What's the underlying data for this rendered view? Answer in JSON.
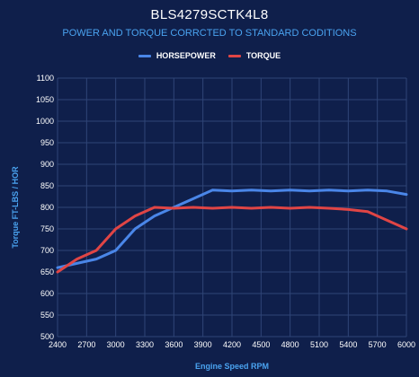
{
  "chart_data": {
    "type": "line",
    "title": "BLS4279SCTK4L8",
    "subtitle": "POWER AND TORQUE CORRCTED TO STANDARD CODITIONS",
    "xlabel": "Engine Speed RPM",
    "ylabel": "Torque FT-LBS / HOR",
    "xlim": [
      2400,
      6000
    ],
    "ylim": [
      500,
      1100
    ],
    "x_ticks": [
      2400,
      2700,
      3000,
      3300,
      3600,
      3900,
      4200,
      4500,
      4800,
      5100,
      5400,
      5700,
      6000
    ],
    "y_ticks": [
      500,
      550,
      600,
      650,
      700,
      750,
      800,
      850,
      900,
      950,
      1000,
      1050,
      1100
    ],
    "grid": true,
    "legend": "top-center",
    "x": [
      2400,
      2600,
      2800,
      3000,
      3200,
      3400,
      3600,
      3800,
      4000,
      4200,
      4400,
      4600,
      4800,
      5000,
      5200,
      5400,
      5600,
      5800,
      6000
    ],
    "series": [
      {
        "name": "HORSEPOWER",
        "color": "#4a86e8",
        "values": [
          660,
          670,
          680,
          700,
          750,
          780,
          800,
          820,
          840,
          838,
          840,
          838,
          840,
          838,
          840,
          838,
          840,
          838,
          830
        ]
      },
      {
        "name": "TORQUE",
        "color": "#e04545",
        "values": [
          650,
          680,
          700,
          750,
          780,
          800,
          798,
          800,
          798,
          800,
          798,
          800,
          798,
          800,
          798,
          795,
          790,
          770,
          750
        ]
      }
    ]
  }
}
